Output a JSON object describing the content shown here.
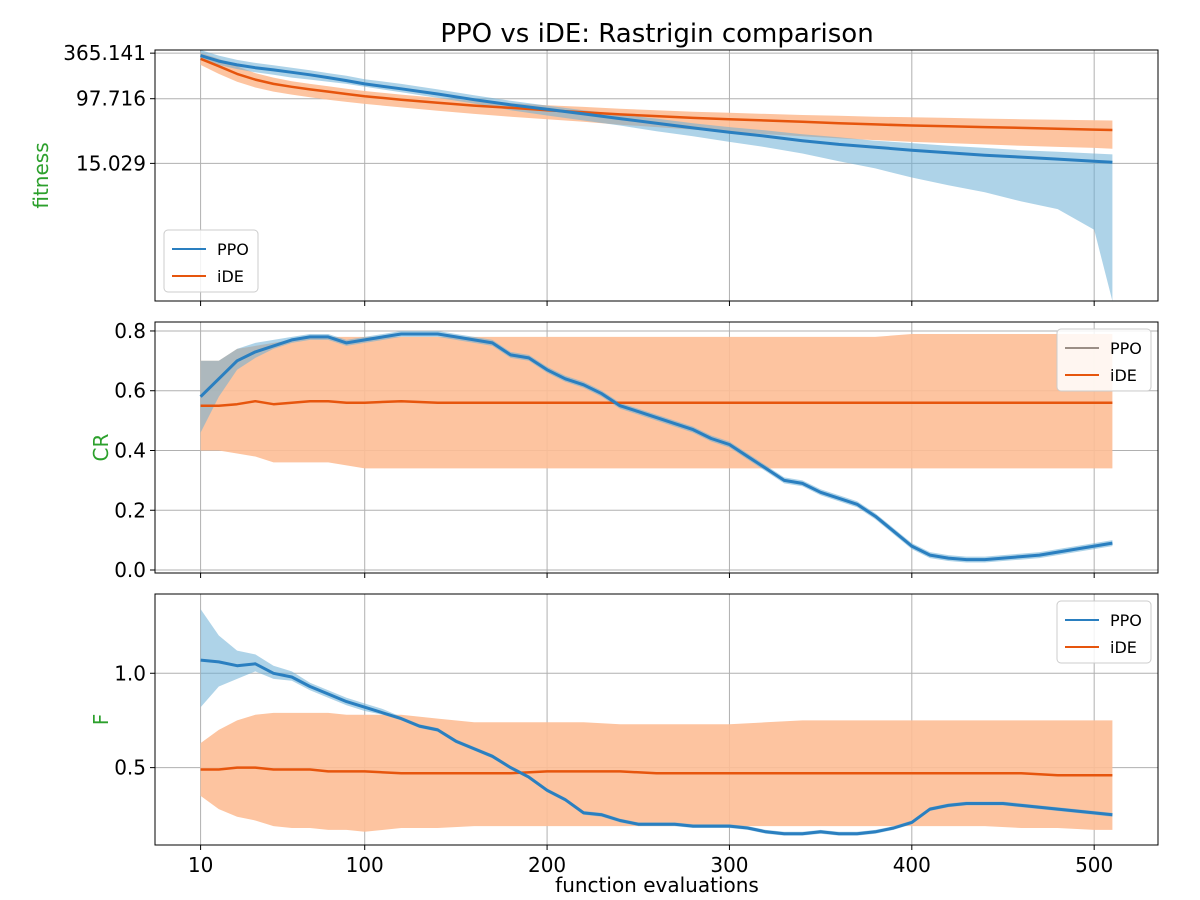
{
  "title": "PPO vs iDE: Rastrigin comparison",
  "xlabel": "function evaluations",
  "colors": {
    "ppo_line": "#2a7fc0",
    "ppo_band": "#6baed6",
    "ide_line": "#e6550d",
    "ide_band": "#fdbe96",
    "overlap": "#9b8e86",
    "ylabel": "#2ca02c"
  },
  "chart_data": [
    {
      "type": "line",
      "panel": "top",
      "ylabel": "fitness",
      "yscale": "log",
      "ylim": [
        0.28,
        400
      ],
      "xlim": [
        -15,
        535
      ],
      "yticks": [
        365.141,
        97.716,
        15.029
      ],
      "ytick_labels": [
        "365.141",
        "97.716",
        "15.029"
      ],
      "xticks": [
        10,
        100,
        200,
        300,
        400,
        500
      ],
      "grid": true,
      "legend": {
        "placement": "lower-left",
        "entries": [
          "PPO",
          "iDE"
        ]
      },
      "series": [
        {
          "name": "PPO",
          "x": [
            10,
            20,
            30,
            40,
            50,
            60,
            70,
            80,
            90,
            100,
            120,
            140,
            160,
            180,
            200,
            220,
            240,
            260,
            280,
            300,
            320,
            340,
            360,
            380,
            400,
            420,
            440,
            460,
            480,
            500,
            510
          ],
          "mean": [
            340,
            290,
            260,
            240,
            225,
            210,
            195,
            180,
            165,
            150,
            130,
            112,
            95,
            82,
            72,
            63,
            55,
            48,
            42,
            37,
            33,
            29,
            26,
            24,
            22,
            20.5,
            19,
            18,
            17,
            16,
            15.5
          ],
          "lower": [
            300,
            260,
            230,
            210,
            195,
            180,
            170,
            160,
            150,
            138,
            118,
            100,
            85,
            70,
            60,
            52,
            45,
            38,
            33,
            28,
            24,
            20,
            16,
            13,
            10,
            8,
            6.5,
            5,
            4,
            2.2,
            0.28
          ],
          "upper": [
            400,
            340,
            300,
            275,
            258,
            240,
            222,
            205,
            190,
            172,
            150,
            128,
            108,
            92,
            80,
            70,
            62,
            55,
            48,
            43,
            39,
            35,
            32,
            29,
            27,
            25,
            23.5,
            22,
            21,
            20,
            19.5
          ]
        },
        {
          "name": "iDE",
          "x": [
            10,
            20,
            30,
            40,
            50,
            60,
            70,
            80,
            90,
            100,
            120,
            140,
            160,
            180,
            200,
            220,
            240,
            260,
            280,
            300,
            320,
            340,
            360,
            380,
            400,
            420,
            440,
            460,
            480,
            500,
            510
          ],
          "mean": [
            310,
            250,
            200,
            170,
            150,
            138,
            128,
            120,
            112,
            105,
            95,
            87,
            80,
            75,
            70,
            66,
            62,
            59,
            56,
            54,
            52,
            50,
            48,
            46.5,
            45,
            44,
            43,
            42,
            41,
            40,
            39.5
          ],
          "lower": [
            260,
            200,
            160,
            135,
            120,
            110,
            102,
            95,
            89,
            84,
            76,
            69,
            63,
            58,
            54,
            50,
            46,
            43,
            40,
            37,
            35,
            33,
            31,
            29.5,
            28,
            27,
            26,
            25,
            24.2,
            23.5,
            23
          ],
          "upper": [
            370,
            310,
            250,
            205,
            180,
            162,
            150,
            140,
            130,
            122,
            110,
            100,
            92,
            86,
            81,
            77,
            73,
            70,
            67,
            65,
            63,
            61,
            59.5,
            58,
            57,
            56,
            55,
            54,
            53,
            52.5,
            52
          ]
        }
      ]
    },
    {
      "type": "line",
      "panel": "middle",
      "ylabel": "CR",
      "ylim": [
        -0.01,
        0.83
      ],
      "xlim": [
        -15,
        535
      ],
      "yticks": [
        0.0,
        0.2,
        0.4,
        0.6,
        0.8
      ],
      "ytick_labels": [
        "0.0",
        "0.2",
        "0.4",
        "0.6",
        "0.8"
      ],
      "xticks": [
        10,
        100,
        200,
        300,
        400,
        500
      ],
      "grid": true,
      "legend": {
        "placement": "top-right",
        "entries": [
          "PPO",
          "iDE"
        ]
      },
      "series": [
        {
          "name": "PPO",
          "x": [
            10,
            20,
            30,
            40,
            50,
            60,
            70,
            80,
            90,
            100,
            110,
            120,
            130,
            140,
            150,
            160,
            170,
            180,
            190,
            200,
            210,
            220,
            230,
            240,
            250,
            260,
            270,
            280,
            290,
            300,
            310,
            320,
            330,
            340,
            350,
            360,
            370,
            380,
            390,
            400,
            410,
            420,
            430,
            440,
            450,
            460,
            470,
            480,
            490,
            500,
            510
          ],
          "mean": [
            0.58,
            0.64,
            0.7,
            0.73,
            0.75,
            0.77,
            0.78,
            0.78,
            0.76,
            0.77,
            0.78,
            0.79,
            0.79,
            0.79,
            0.78,
            0.77,
            0.76,
            0.72,
            0.71,
            0.67,
            0.64,
            0.62,
            0.59,
            0.55,
            0.53,
            0.51,
            0.49,
            0.47,
            0.44,
            0.42,
            0.38,
            0.34,
            0.3,
            0.29,
            0.26,
            0.24,
            0.22,
            0.18,
            0.13,
            0.08,
            0.05,
            0.04,
            0.035,
            0.035,
            0.04,
            0.045,
            0.05,
            0.06,
            0.07,
            0.08,
            0.09
          ],
          "lower": [
            0.46,
            0.58,
            0.67,
            0.71,
            0.74,
            0.76,
            0.77,
            0.77,
            0.75,
            0.76,
            0.77,
            0.78,
            0.78,
            0.78,
            0.77,
            0.76,
            0.75,
            0.71,
            0.7,
            0.66,
            0.63,
            0.61,
            0.58,
            0.54,
            0.52,
            0.5,
            0.48,
            0.46,
            0.43,
            0.41,
            0.37,
            0.33,
            0.29,
            0.28,
            0.25,
            0.23,
            0.21,
            0.17,
            0.12,
            0.07,
            0.04,
            0.03,
            0.025,
            0.025,
            0.03,
            0.035,
            0.04,
            0.05,
            0.06,
            0.07,
            0.08
          ],
          "upper": [
            0.7,
            0.7,
            0.74,
            0.76,
            0.77,
            0.78,
            0.79,
            0.79,
            0.77,
            0.78,
            0.79,
            0.8,
            0.8,
            0.8,
            0.79,
            0.78,
            0.77,
            0.73,
            0.72,
            0.68,
            0.65,
            0.63,
            0.6,
            0.56,
            0.54,
            0.52,
            0.5,
            0.48,
            0.45,
            0.43,
            0.39,
            0.35,
            0.31,
            0.3,
            0.27,
            0.25,
            0.23,
            0.19,
            0.14,
            0.09,
            0.06,
            0.05,
            0.045,
            0.045,
            0.05,
            0.055,
            0.06,
            0.07,
            0.08,
            0.09,
            0.1
          ]
        },
        {
          "name": "iDE",
          "x": [
            10,
            20,
            30,
            40,
            50,
            60,
            70,
            80,
            90,
            100,
            120,
            140,
            160,
            180,
            200,
            220,
            240,
            260,
            280,
            300,
            320,
            340,
            360,
            380,
            400,
            420,
            440,
            460,
            480,
            500,
            510
          ],
          "mean": [
            0.55,
            0.55,
            0.555,
            0.565,
            0.555,
            0.56,
            0.565,
            0.565,
            0.56,
            0.56,
            0.565,
            0.56,
            0.56,
            0.56,
            0.56,
            0.56,
            0.56,
            0.56,
            0.56,
            0.56,
            0.56,
            0.56,
            0.56,
            0.56,
            0.56,
            0.56,
            0.56,
            0.56,
            0.56,
            0.56,
            0.56
          ],
          "lower": [
            0.4,
            0.4,
            0.39,
            0.38,
            0.36,
            0.36,
            0.36,
            0.36,
            0.35,
            0.34,
            0.34,
            0.34,
            0.34,
            0.34,
            0.34,
            0.34,
            0.34,
            0.34,
            0.34,
            0.34,
            0.34,
            0.34,
            0.34,
            0.34,
            0.34,
            0.34,
            0.34,
            0.34,
            0.34,
            0.34,
            0.34
          ],
          "upper": [
            0.7,
            0.7,
            0.74,
            0.75,
            0.76,
            0.77,
            0.78,
            0.78,
            0.78,
            0.78,
            0.78,
            0.78,
            0.78,
            0.78,
            0.78,
            0.78,
            0.78,
            0.78,
            0.78,
            0.78,
            0.78,
            0.78,
            0.78,
            0.78,
            0.79,
            0.79,
            0.79,
            0.79,
            0.79,
            0.79,
            0.79
          ]
        }
      ]
    },
    {
      "type": "line",
      "panel": "bottom",
      "ylabel": "F",
      "ylim": [
        0.09,
        1.42
      ],
      "xlim": [
        -15,
        535
      ],
      "yticks": [
        0.5,
        1.0
      ],
      "ytick_labels": [
        "0.5",
        "1.0"
      ],
      "xticks": [
        10,
        100,
        200,
        300,
        400,
        500
      ],
      "xtick_labels": [
        "10",
        "100",
        "200",
        "300",
        "400",
        "500"
      ],
      "grid": true,
      "legend": {
        "placement": "top-right",
        "entries": [
          "PPO",
          "iDE"
        ]
      },
      "series": [
        {
          "name": "PPO",
          "x": [
            10,
            20,
            30,
            40,
            50,
            60,
            70,
            80,
            90,
            100,
            110,
            120,
            130,
            140,
            150,
            160,
            170,
            180,
            190,
            200,
            210,
            220,
            230,
            240,
            250,
            260,
            270,
            280,
            290,
            300,
            310,
            320,
            330,
            340,
            350,
            360,
            370,
            380,
            390,
            400,
            410,
            420,
            430,
            440,
            450,
            460,
            470,
            480,
            490,
            500,
            510
          ],
          "mean": [
            1.07,
            1.06,
            1.04,
            1.05,
            1.0,
            0.98,
            0.93,
            0.89,
            0.85,
            0.82,
            0.79,
            0.76,
            0.72,
            0.7,
            0.64,
            0.6,
            0.56,
            0.5,
            0.45,
            0.38,
            0.33,
            0.26,
            0.25,
            0.22,
            0.2,
            0.2,
            0.2,
            0.19,
            0.19,
            0.19,
            0.18,
            0.16,
            0.15,
            0.15,
            0.16,
            0.15,
            0.15,
            0.16,
            0.18,
            0.21,
            0.28,
            0.3,
            0.31,
            0.31,
            0.31,
            0.3,
            0.29,
            0.28,
            0.27,
            0.26,
            0.25
          ],
          "lower": [
            0.82,
            0.93,
            0.97,
            1.01,
            0.97,
            0.96,
            0.91,
            0.87,
            0.83,
            0.8,
            0.78,
            0.75,
            0.71,
            0.69,
            0.63,
            0.59,
            0.55,
            0.49,
            0.44,
            0.37,
            0.32,
            0.25,
            0.24,
            0.21,
            0.19,
            0.19,
            0.19,
            0.18,
            0.18,
            0.18,
            0.17,
            0.15,
            0.14,
            0.14,
            0.15,
            0.14,
            0.14,
            0.15,
            0.17,
            0.2,
            0.27,
            0.29,
            0.3,
            0.3,
            0.3,
            0.29,
            0.28,
            0.27,
            0.26,
            0.25,
            0.24
          ],
          "upper": [
            1.34,
            1.2,
            1.12,
            1.1,
            1.04,
            1.01,
            0.95,
            0.91,
            0.87,
            0.84,
            0.81,
            0.77,
            0.73,
            0.71,
            0.65,
            0.61,
            0.57,
            0.51,
            0.46,
            0.39,
            0.34,
            0.27,
            0.26,
            0.23,
            0.21,
            0.21,
            0.21,
            0.2,
            0.2,
            0.2,
            0.19,
            0.17,
            0.16,
            0.16,
            0.17,
            0.16,
            0.16,
            0.17,
            0.19,
            0.22,
            0.29,
            0.31,
            0.32,
            0.32,
            0.32,
            0.31,
            0.3,
            0.29,
            0.28,
            0.27,
            0.26
          ]
        },
        {
          "name": "iDE",
          "x": [
            10,
            20,
            30,
            40,
            50,
            60,
            70,
            80,
            90,
            100,
            120,
            140,
            160,
            180,
            200,
            220,
            240,
            260,
            280,
            300,
            320,
            340,
            360,
            380,
            400,
            420,
            440,
            460,
            480,
            500,
            510
          ],
          "mean": [
            0.49,
            0.49,
            0.5,
            0.5,
            0.49,
            0.49,
            0.49,
            0.48,
            0.48,
            0.48,
            0.47,
            0.47,
            0.47,
            0.47,
            0.48,
            0.48,
            0.48,
            0.47,
            0.47,
            0.47,
            0.47,
            0.47,
            0.47,
            0.47,
            0.47,
            0.47,
            0.47,
            0.47,
            0.46,
            0.46,
            0.46
          ],
          "lower": [
            0.35,
            0.28,
            0.24,
            0.22,
            0.19,
            0.18,
            0.18,
            0.17,
            0.17,
            0.16,
            0.18,
            0.18,
            0.19,
            0.19,
            0.19,
            0.19,
            0.19,
            0.19,
            0.19,
            0.19,
            0.19,
            0.19,
            0.19,
            0.19,
            0.19,
            0.19,
            0.19,
            0.18,
            0.18,
            0.17,
            0.17
          ],
          "upper": [
            0.63,
            0.7,
            0.75,
            0.78,
            0.79,
            0.79,
            0.79,
            0.79,
            0.78,
            0.78,
            0.78,
            0.76,
            0.74,
            0.74,
            0.74,
            0.74,
            0.73,
            0.73,
            0.73,
            0.73,
            0.74,
            0.75,
            0.75,
            0.75,
            0.75,
            0.75,
            0.75,
            0.75,
            0.75,
            0.75,
            0.75
          ]
        }
      ]
    }
  ]
}
